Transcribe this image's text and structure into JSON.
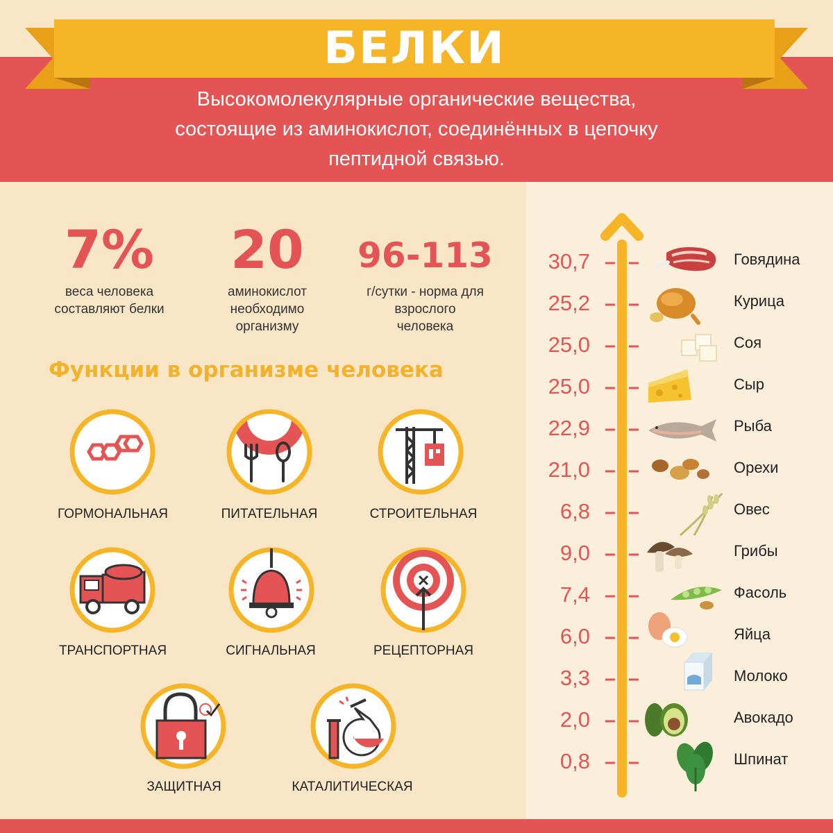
{
  "header": {
    "title": "БЕЛКИ",
    "subtitle_lines": [
      "Высокомолекулярные органические вещества,",
      "состоящие из аминокислот, соединённых в цепочку",
      "пептидной связью."
    ]
  },
  "stats": [
    {
      "value": "7%",
      "caption_lines": [
        "веса человека",
        "составляют белки"
      ]
    },
    {
      "value": "20",
      "caption_lines": [
        "аминокислот",
        "необходимо",
        "организму"
      ]
    },
    {
      "value": "96-113",
      "caption_lines": [
        "г/сутки - норма для",
        "взрослого",
        "человека"
      ]
    }
  ],
  "functions": {
    "title": "Функции в организме человека",
    "items": [
      {
        "label": "ГОРМОНАЛЬНАЯ",
        "icon": "hexagon-chain-icon"
      },
      {
        "label": "ПИТАТЕЛЬНАЯ",
        "icon": "plate-cutlery-icon"
      },
      {
        "label": "СТРОИТЕЛЬНАЯ",
        "icon": "crane-icon"
      },
      {
        "label": "ТРАНСПОРТНАЯ",
        "icon": "dump-truck-icon"
      },
      {
        "label": "СИГНАЛЬНАЯ",
        "icon": "bell-icon"
      },
      {
        "label": "РЕЦЕПТОРНАЯ",
        "icon": "target-icon"
      },
      {
        "label": "ЗАЩИТНАЯ",
        "icon": "padlock-icon"
      },
      {
        "label": "КАТАЛИТИЧЕСКАЯ",
        "icon": "flask-icon"
      }
    ]
  },
  "foods": [
    {
      "value": "30,7",
      "name": "Говядина",
      "icon": "beef-icon"
    },
    {
      "value": "25,2",
      "name": "Курица",
      "icon": "chicken-icon"
    },
    {
      "value": "25,0",
      "name": "Соя",
      "icon": "tofu-icon"
    },
    {
      "value": "25,0",
      "name": "Сыр",
      "icon": "cheese-icon"
    },
    {
      "value": "22,9",
      "name": "Рыба",
      "icon": "fish-icon"
    },
    {
      "value": "21,0",
      "name": "Орехи",
      "icon": "nuts-icon"
    },
    {
      "value": "6,8",
      "name": "Овес",
      "icon": "oats-icon"
    },
    {
      "value": "9,0",
      "name": "Грибы",
      "icon": "mushroom-icon"
    },
    {
      "value": "7,4",
      "name": "Фасоль",
      "icon": "beans-icon"
    },
    {
      "value": "6,0",
      "name": "Яйца",
      "icon": "eggs-icon"
    },
    {
      "value": "3,3",
      "name": "Молоко",
      "icon": "milk-icon"
    },
    {
      "value": "2,0",
      "name": "Авокадо",
      "icon": "avocado-icon"
    },
    {
      "value": "0,8",
      "name": "Шпинат",
      "icon": "spinach-icon"
    }
  ],
  "colors": {
    "red": "#e55454",
    "yellow": "#f6b526",
    "background": "#f8e6c6",
    "panel": "#fbefdc"
  }
}
